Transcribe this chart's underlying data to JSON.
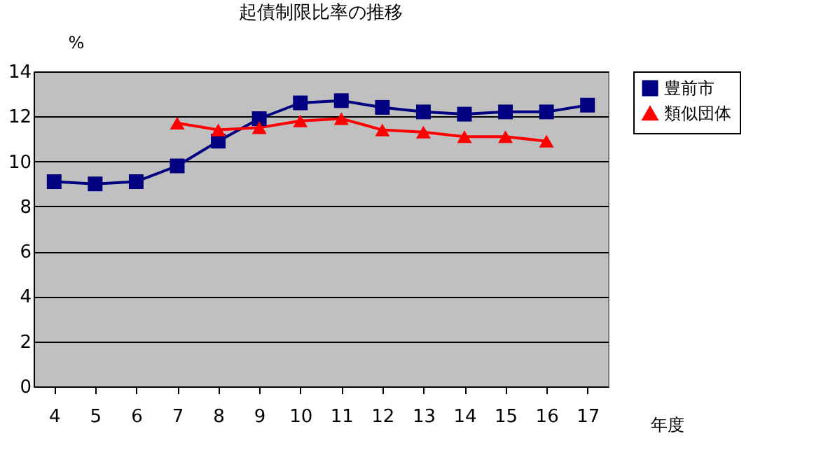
{
  "chart_data": {
    "type": "line",
    "title": "起債制限比率の推移",
    "xlabel": "年度",
    "ylabel": "%",
    "categories": [
      "4",
      "5",
      "6",
      "7",
      "8",
      "9",
      "10",
      "11",
      "12",
      "13",
      "14",
      "15",
      "16",
      "17"
    ],
    "series": [
      {
        "name": "豊前市",
        "color": "#000080",
        "marker": "square",
        "values": [
          9.1,
          9.0,
          9.1,
          9.8,
          10.9,
          11.9,
          12.6,
          12.7,
          12.4,
          12.2,
          12.1,
          12.2,
          12.2,
          12.5
        ]
      },
      {
        "name": "類似団体",
        "color": "#ff0000",
        "marker": "triangle",
        "values": [
          null,
          null,
          null,
          11.7,
          11.4,
          11.5,
          11.8,
          11.9,
          11.4,
          11.3,
          11.1,
          11.1,
          10.9,
          null
        ]
      }
    ],
    "ylim": [
      0,
      14
    ],
    "yticks": [
      0,
      2,
      4,
      6,
      8,
      10,
      12,
      14
    ],
    "grid": "y",
    "legend": "right"
  }
}
